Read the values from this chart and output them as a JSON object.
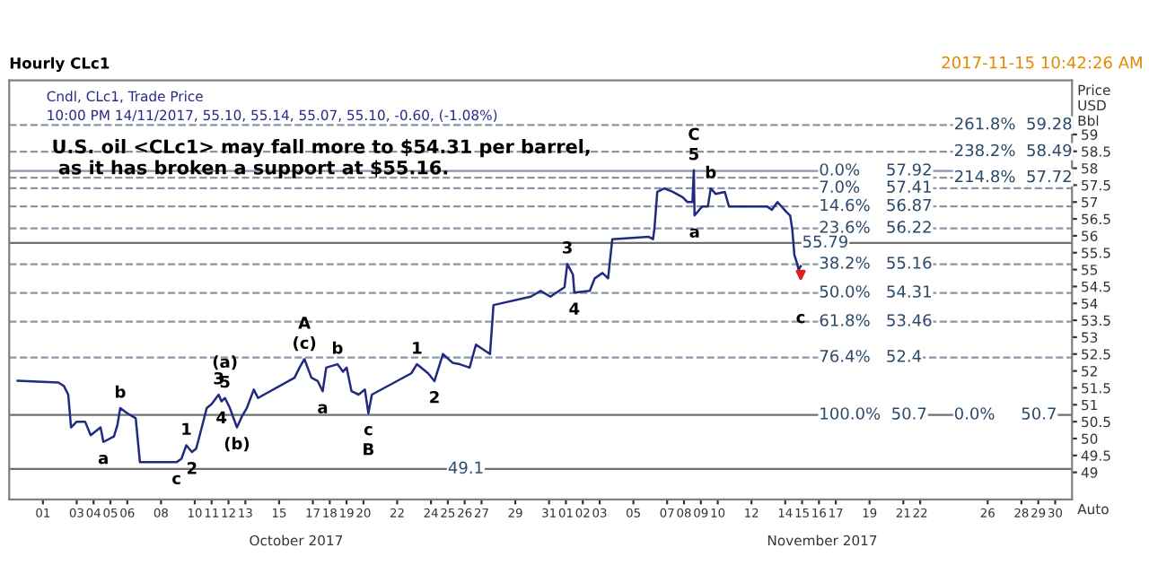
{
  "chart_data": {
    "type": "line",
    "title": "Hourly CLc1",
    "subtitle": "Cndl, CLc1, Trade Price",
    "ylabel": "Price\nUSD\nBbl",
    "x": [
      "2017-09-29T12:00",
      "2017-10-01T22:00",
      "2017-10-02T06:00",
      "2017-10-02T12:00",
      "2017-10-02T16:00",
      "2017-10-03T00:00",
      "2017-10-03T12:00",
      "2017-10-03T20:00",
      "2017-10-04T10:00",
      "2017-10-04T14:00",
      "2017-10-05T05:00",
      "2017-10-05T10:00",
      "2017-10-05T14:00",
      "2017-10-06T00:00",
      "2017-10-06T12:00",
      "2017-10-06T18:00",
      "2017-10-08T22:00",
      "2017-10-09T05:00",
      "2017-10-09T12:00",
      "2017-10-09T20:00",
      "2017-10-10T02:00",
      "2017-10-10T10:00",
      "2017-10-10T17:00",
      "2017-10-11T00:00",
      "2017-10-11T10:00",
      "2017-10-11T14:00",
      "2017-10-11T19:00",
      "2017-10-12T02:00",
      "2017-10-12T12:00",
      "2017-10-12T19:00",
      "2017-10-13T02:00",
      "2017-10-13T12:00",
      "2017-10-13T18:00",
      "2017-10-15T22:00",
      "2017-10-16T05:00",
      "2017-10-16T12:00",
      "2017-10-16T22:00",
      "2017-10-17T07:00",
      "2017-10-17T14:00",
      "2017-10-17T19:00",
      "2017-10-18T11:00",
      "2017-10-18T19:00",
      "2017-10-19T00:00",
      "2017-10-19T07:00",
      "2017-10-19T17:00",
      "2017-10-20T02:00",
      "2017-10-20T07:00",
      "2017-10-20T12:00",
      "2017-10-22T20:00",
      "2017-10-23T04:00",
      "2017-10-23T20:00",
      "2017-10-24T05:00",
      "2017-10-24T17:00",
      "2017-10-25T07:00",
      "2017-10-25T17:00",
      "2017-10-26T07:00",
      "2017-10-26T16:00",
      "2017-10-27T12:00",
      "2017-10-27T17:00",
      "2017-10-29T22:00",
      "2017-10-30T12:00",
      "2017-10-31T02:00",
      "2017-10-31T22:00",
      "2017-11-01T02:00",
      "2017-11-01T10:00",
      "2017-11-01T12:00",
      "2017-11-02T10:00",
      "2017-11-02T17:00",
      "2017-11-03T04:00",
      "2017-11-03T12:00",
      "2017-11-03T18:00",
      "2017-11-05T22:00",
      "2017-11-06T04:00",
      "2017-11-06T06:00",
      "2017-11-06T10:00",
      "2017-11-06T20:00",
      "2017-11-07T08:00",
      "2017-11-07T22:00",
      "2017-11-08T05:00",
      "2017-11-08T12:00",
      "2017-11-08T14:00",
      "2017-11-08T15:00",
      "2017-11-09T02:00",
      "2017-11-09T10:00",
      "2017-11-09T14:00",
      "2017-11-09T21:00",
      "2017-11-10T10:00",
      "2017-11-10T16:00",
      "2017-11-12T22:00",
      "2017-11-13T05:00",
      "2017-11-13T13:00",
      "2017-11-14T02:00",
      "2017-11-14T07:00",
      "2017-11-14T10:00",
      "2017-11-14T13:00",
      "2017-11-14T17:00",
      "2017-11-14T19:00",
      "2017-11-14T22:00"
    ],
    "series": [
      {
        "color": "#1f2a80",
        "values": [
          51.71,
          51.66,
          51.55,
          51.3,
          50.33,
          50.5,
          50.5,
          50.1,
          50.33,
          49.9,
          50.06,
          50.4,
          50.9,
          50.75,
          50.6,
          49.3,
          49.3,
          49.4,
          49.8,
          49.6,
          49.7,
          50.33,
          50.9,
          51.02,
          51.3,
          51.1,
          51.2,
          50.9,
          50.33,
          50.65,
          50.9,
          51.45,
          51.2,
          51.8,
          52.1,
          52.35,
          51.8,
          51.7,
          51.4,
          52.1,
          52.2,
          51.98,
          52.1,
          51.4,
          51.3,
          51.45,
          50.75,
          51.3,
          51.93,
          52.2,
          51.93,
          51.7,
          52.5,
          52.24,
          52.2,
          52.1,
          52.78,
          52.5,
          53.95,
          54.2,
          54.37,
          54.2,
          54.48,
          55.17,
          54.85,
          54.32,
          54.37,
          54.74,
          54.9,
          54.74,
          55.9,
          55.97,
          55.9,
          56.23,
          57.3,
          57.4,
          57.3,
          57.14,
          57.0,
          57.0,
          57.94,
          56.6,
          56.87,
          56.87,
          57.4,
          57.24,
          57.3,
          56.87,
          56.87,
          56.77,
          57.0,
          56.7,
          56.6,
          56.2,
          55.44,
          55.17,
          55.0,
          55.1
        ]
      }
    ],
    "xlim": [
      "2017-09-29",
      "2017-12-01"
    ],
    "xticks": [
      {
        "value": "2017-10-01",
        "label": "01"
      },
      {
        "value": "2017-10-03",
        "label": "03"
      },
      {
        "value": "2017-10-04",
        "label": "04"
      },
      {
        "value": "2017-10-05",
        "label": "05"
      },
      {
        "value": "2017-10-06",
        "label": "06"
      },
      {
        "value": "2017-10-08",
        "label": "08"
      },
      {
        "value": "2017-10-10",
        "label": "10"
      },
      {
        "value": "2017-10-11",
        "label": "11"
      },
      {
        "value": "2017-10-12",
        "label": "12"
      },
      {
        "value": "2017-10-13",
        "label": "13"
      },
      {
        "value": "2017-10-15",
        "label": "15"
      },
      {
        "value": "2017-10-17",
        "label": "17"
      },
      {
        "value": "2017-10-18",
        "label": "18"
      },
      {
        "value": "2017-10-19",
        "label": "19"
      },
      {
        "value": "2017-10-20",
        "label": "20"
      },
      {
        "value": "2017-10-22",
        "label": "22"
      },
      {
        "value": "2017-10-24",
        "label": "24"
      },
      {
        "value": "2017-10-25",
        "label": "25"
      },
      {
        "value": "2017-10-26",
        "label": "26"
      },
      {
        "value": "2017-10-27",
        "label": "27"
      },
      {
        "value": "2017-10-29",
        "label": "29"
      },
      {
        "value": "2017-10-31",
        "label": "31"
      },
      {
        "value": "2017-11-01",
        "label": "01"
      },
      {
        "value": "2017-11-02",
        "label": "02"
      },
      {
        "value": "2017-11-03",
        "label": "03"
      },
      {
        "value": "2017-11-05",
        "label": "05"
      },
      {
        "value": "2017-11-07",
        "label": "07"
      },
      {
        "value": "2017-11-08",
        "label": "08"
      },
      {
        "value": "2017-11-09",
        "label": "09"
      },
      {
        "value": "2017-11-10",
        "label": "10"
      },
      {
        "value": "2017-11-12",
        "label": "12"
      },
      {
        "value": "2017-11-14",
        "label": "14"
      },
      {
        "value": "2017-11-15",
        "label": "15"
      },
      {
        "value": "2017-11-16",
        "label": "16"
      },
      {
        "value": "2017-11-17",
        "label": "17"
      },
      {
        "value": "2017-11-19",
        "label": "19"
      },
      {
        "value": "2017-11-21",
        "label": "21"
      },
      {
        "value": "2017-11-22",
        "label": "22"
      },
      {
        "value": "2017-11-26",
        "label": "26"
      },
      {
        "value": "2017-11-28",
        "label": "28"
      },
      {
        "value": "2017-11-29",
        "label": "29"
      },
      {
        "value": "2017-11-30",
        "label": "30"
      }
    ],
    "ylim": [
      48.2,
      60.6
    ],
    "yticks": [
      49,
      49.5,
      50,
      50.5,
      51,
      51.5,
      52,
      52.5,
      53,
      53.5,
      54,
      54.5,
      55,
      55.5,
      56,
      56.5,
      57,
      57.5,
      58,
      58.5,
      59
    ],
    "ref_lines": [
      {
        "axis": "y",
        "value": 59.28,
        "color": "#8a96a8",
        "line_style": "dashed"
      },
      {
        "axis": "y",
        "value": 58.49,
        "color": "#8a96a8",
        "line_style": "dashed"
      },
      {
        "axis": "y",
        "value": 57.92,
        "color": "#8a96a8",
        "line_style": "solid"
      },
      {
        "axis": "y",
        "value": 57.72,
        "color": "#8a96a8",
        "line_style": "dashed"
      },
      {
        "axis": "y",
        "value": 57.41,
        "color": "#8a96a8",
        "line_style": "dashed"
      },
      {
        "axis": "y",
        "value": 56.87,
        "color": "#8a96a8",
        "line_style": "dashed"
      },
      {
        "axis": "y",
        "value": 56.22,
        "color": "#8a96a8",
        "line_style": "dashed"
      },
      {
        "axis": "y",
        "value": 55.79,
        "color": "#707070",
        "line_style": "solid"
      },
      {
        "axis": "y",
        "value": 55.16,
        "color": "#8a96a8",
        "line_style": "dashed"
      },
      {
        "axis": "y",
        "value": 54.31,
        "color": "#8a96a8",
        "line_style": "dashed"
      },
      {
        "axis": "y",
        "value": 53.46,
        "color": "#8a96a8",
        "line_style": "dashed"
      },
      {
        "axis": "y",
        "value": 52.4,
        "color": "#8a96a8",
        "line_style": "dashed"
      },
      {
        "axis": "y",
        "value": 50.7,
        "color": "#707070",
        "line_style": "solid"
      },
      {
        "axis": "y",
        "value": 49.1,
        "color": "#707070",
        "line_style": "solid"
      }
    ],
    "annotations": [
      "10:00 PM 14/11/2017, 55.10, 55.14, 55.07, 55.10, -0.60, (-1.08%)",
      "U.S. oil <CLc1> may fall more to $54.31 per barrel,\n as it has broken a support at $55.16.",
      "2017-11-15 10:42:26 AM",
      "October 2017",
      "November 2017",
      "Auto",
      {
        "text": "261.8%  59.28",
        "x": "2017-11-24",
        "y": 59.28
      },
      {
        "text": "238.2%  58.49",
        "x": "2017-11-24",
        "y": 58.49
      },
      {
        "text": "214.8%  57.72",
        "x": "2017-11-24",
        "y": 57.72
      },
      {
        "text": "0.0%     57.92",
        "x": "2017-11-16",
        "y": 57.92
      },
      {
        "text": "7.0%     57.41",
        "x": "2017-11-16",
        "y": 57.41
      },
      {
        "text": "14.6%   56.87",
        "x": "2017-11-16",
        "y": 56.87
      },
      {
        "text": "23.6%   56.22",
        "x": "2017-11-16",
        "y": 56.22
      },
      {
        "text": "55.79",
        "x": "2017-11-15",
        "y": 55.79
      },
      {
        "text": "38.2%   55.16",
        "x": "2017-11-16",
        "y": 55.16
      },
      {
        "text": "50.0%   54.31",
        "x": "2017-11-16",
        "y": 54.31
      },
      {
        "text": "61.8%   53.46",
        "x": "2017-11-16",
        "y": 53.46
      },
      {
        "text": "76.4%   52.4",
        "x": "2017-11-16",
        "y": 52.4
      },
      {
        "text": "100.0%  50.7",
        "x": "2017-11-16",
        "y": 50.7
      },
      {
        "text": "0.0%     50.7",
        "x": "2017-11-24",
        "y": 50.7
      },
      {
        "text": "49.1",
        "x": "2017-10-25",
        "y": 49.1
      },
      {
        "text": "a",
        "x": "2017-10-04T14:00",
        "y": 49.9
      },
      {
        "text": "b",
        "x": "2017-10-05T14:00",
        "y": 50.9
      },
      {
        "text": "c",
        "x": "2017-10-08T22:00",
        "y": 49.3
      },
      {
        "text": "1",
        "x": "2017-10-09T12:00",
        "y": 49.8
      },
      {
        "text": "2",
        "x": "2017-10-09T20:00",
        "y": 49.6
      },
      {
        "text": "3",
        "x": "2017-10-11T10:00",
        "y": 51.3
      },
      {
        "text": "4",
        "x": "2017-10-11T14:00",
        "y": 51.1
      },
      {
        "text": "5",
        "x": "2017-10-11T19:00",
        "y": 51.2
      },
      {
        "text": "(a)",
        "x": "2017-10-11T19:00",
        "y": 51.2
      },
      {
        "text": "(b)",
        "x": "2017-10-12T12:00",
        "y": 50.33
      },
      {
        "text": "(c)",
        "x": "2017-10-16T12:00",
        "y": 52.35
      },
      {
        "text": "A",
        "x": "2017-10-16T12:00",
        "y": 52.35
      },
      {
        "text": "a",
        "x": "2017-10-17T14:00",
        "y": 51.4
      },
      {
        "text": "b",
        "x": "2017-10-18T11:00",
        "y": 52.2
      },
      {
        "text": "c",
        "x": "2017-10-20T07:00",
        "y": 50.75
      },
      {
        "text": "B",
        "x": "2017-10-20T07:00",
        "y": 50.75
      },
      {
        "text": "1",
        "x": "2017-10-23T04:00",
        "y": 52.2
      },
      {
        "text": "2",
        "x": "2017-10-24T05:00",
        "y": 51.7
      },
      {
        "text": "3",
        "x": "2017-11-01T02:00",
        "y": 55.17
      },
      {
        "text": "4",
        "x": "2017-11-01T12:00",
        "y": 54.32
      },
      {
        "text": "5",
        "x": "2017-11-08T14:00",
        "y": 57.94
      },
      {
        "text": "C",
        "x": "2017-11-08T14:00",
        "y": 57.94
      },
      {
        "text": "a",
        "x": "2017-11-08T15:00",
        "y": 56.6
      },
      {
        "text": "b",
        "x": "2017-11-09T14:00",
        "y": 57.4
      },
      {
        "text": "c",
        "x": "2017-11-14T22:00",
        "y": 55.1
      }
    ]
  }
}
